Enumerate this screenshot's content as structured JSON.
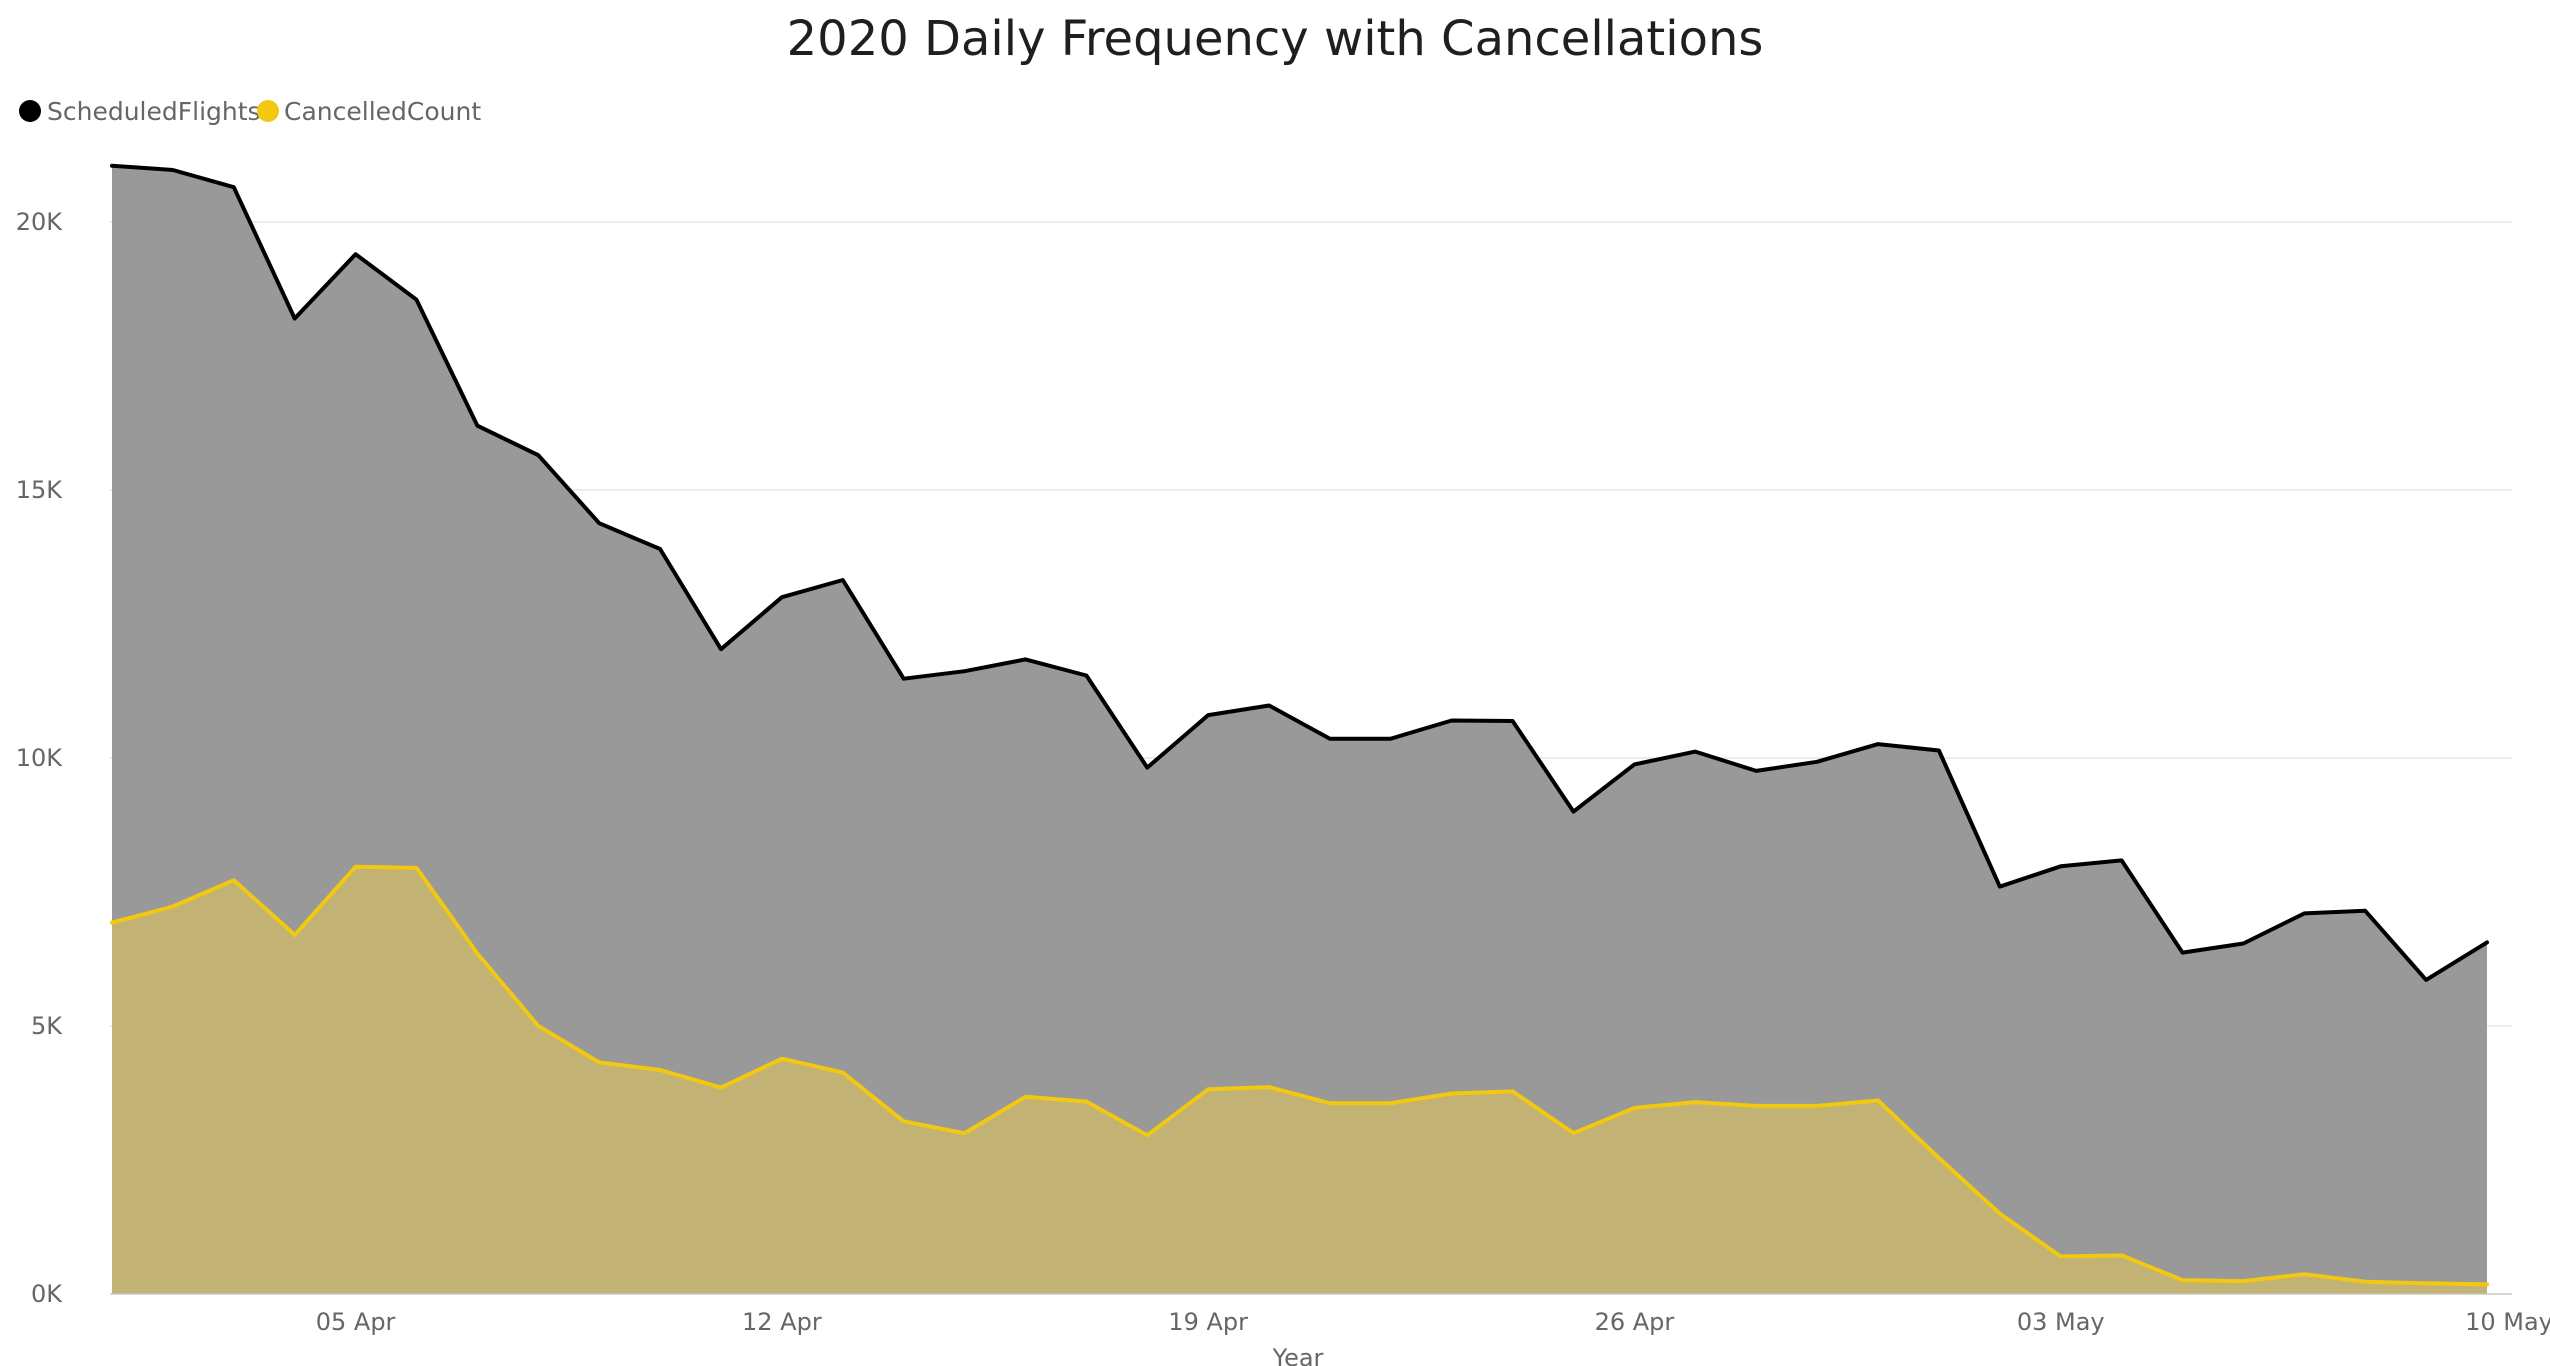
{
  "chart_data": {
    "type": "area",
    "title": "2020 Daily Frequency with Cancellations",
    "xlabel": "Year",
    "ylabel": "",
    "x": [
      "2020-04-01",
      "2020-04-02",
      "2020-04-03",
      "2020-04-04",
      "2020-04-05",
      "2020-04-06",
      "2020-04-07",
      "2020-04-08",
      "2020-04-09",
      "2020-04-10",
      "2020-04-11",
      "2020-04-12",
      "2020-04-13",
      "2020-04-14",
      "2020-04-15",
      "2020-04-16",
      "2020-04-17",
      "2020-04-18",
      "2020-04-19",
      "2020-04-20",
      "2020-04-21",
      "2020-04-22",
      "2020-04-23",
      "2020-04-24",
      "2020-04-25",
      "2020-04-26",
      "2020-04-27",
      "2020-04-28",
      "2020-04-29",
      "2020-04-30",
      "2020-05-01",
      "2020-05-02",
      "2020-05-03",
      "2020-05-04",
      "2020-05-05",
      "2020-05-06",
      "2020-05-07",
      "2020-05-08",
      "2020-05-09",
      "2020-05-10"
    ],
    "x_ticks": [
      "05 Apr",
      "12 Apr",
      "19 Apr",
      "26 Apr",
      "03 May",
      "10 May"
    ],
    "x_tick_dates": [
      "2020-04-05",
      "2020-04-12",
      "2020-04-19",
      "2020-04-26",
      "2020-05-03",
      "2020-05-10"
    ],
    "y_ticks": [
      "0K",
      "5K",
      "10K",
      "15K",
      "20K"
    ],
    "y_tick_values": [
      0,
      5000,
      10000,
      15000,
      20000
    ],
    "ylim": [
      0,
      21500
    ],
    "grid": true,
    "legend_position": "top-left",
    "series": [
      {
        "name": "ScheduledFlights",
        "color": "#000000",
        "fill": "#999999",
        "values": [
          21050,
          20970,
          20650,
          18200,
          19400,
          18550,
          16200,
          15650,
          14380,
          13900,
          12030,
          13000,
          13320,
          11480,
          11620,
          11840,
          11540,
          9820,
          10800,
          10980,
          10360,
          10360,
          10700,
          10690,
          9000,
          9880,
          10120,
          9760,
          9930,
          10260,
          10140,
          7600,
          7980,
          8090,
          6370,
          6540,
          7100,
          7150,
          5860,
          6560
        ]
      },
      {
        "name": "CancelledCount",
        "color": "#F2C811",
        "fill": "#C2B273",
        "values": [
          6930,
          7230,
          7720,
          6700,
          7970,
          7950,
          6350,
          5000,
          4320,
          4180,
          3850,
          4390,
          4130,
          3220,
          3000,
          3680,
          3590,
          2960,
          3820,
          3860,
          3560,
          3560,
          3740,
          3780,
          3000,
          3470,
          3580,
          3510,
          3510,
          3610,
          2540,
          1500,
          700,
          720,
          260,
          240,
          370,
          230,
          200,
          180
        ]
      }
    ]
  }
}
